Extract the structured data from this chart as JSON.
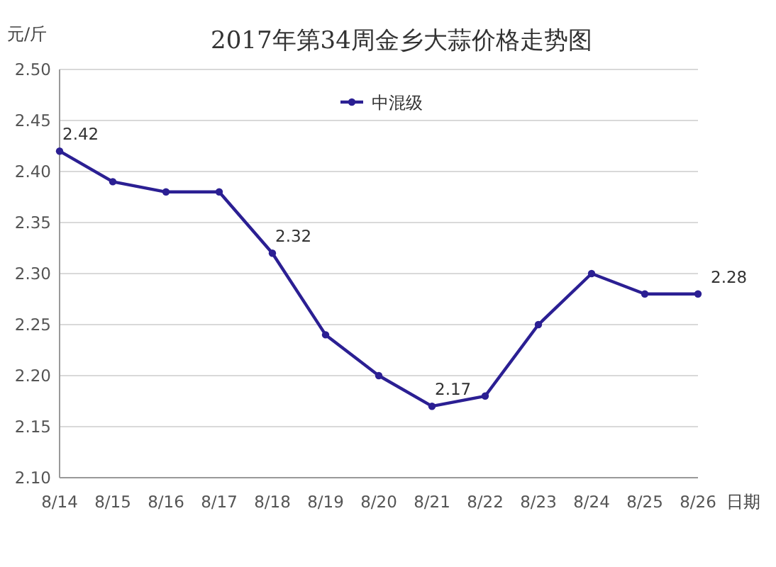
{
  "chart_data": {
    "type": "line",
    "title": "2017年第34周金乡大蒜价格走势图",
    "ylabel": "元/斤",
    "xlabel": "日期",
    "categories": [
      "8/14",
      "8/15",
      "8/16",
      "8/17",
      "8/18",
      "8/19",
      "8/20",
      "8/21",
      "8/22",
      "8/23",
      "8/24",
      "8/25",
      "8/26"
    ],
    "series": [
      {
        "name": "中混级",
        "color": "#2b1f93",
        "values": [
          2.42,
          2.39,
          2.38,
          2.38,
          2.32,
          2.24,
          2.2,
          2.17,
          2.18,
          2.25,
          2.3,
          2.28,
          2.28
        ],
        "value_labels": [
          "2.42",
          null,
          null,
          null,
          "2.32",
          null,
          null,
          "2.17",
          null,
          null,
          null,
          null,
          "2.28"
        ]
      }
    ],
    "ylim": [
      2.1,
      2.5
    ],
    "yticks": [
      {
        "value": 2.1,
        "label": "2.10"
      },
      {
        "value": 2.15,
        "label": "2.15"
      },
      {
        "value": 2.2,
        "label": "2.20"
      },
      {
        "value": 2.25,
        "label": "2.25"
      },
      {
        "value": 2.3,
        "label": "2.30"
      },
      {
        "value": 2.35,
        "label": "2.35"
      },
      {
        "value": 2.4,
        "label": "2.40"
      },
      {
        "value": 2.45,
        "label": "2.45"
      },
      {
        "value": 2.5,
        "label": "2.50"
      }
    ],
    "grid": "y",
    "legend": "top",
    "marker": "circle",
    "line_style": "solid"
  }
}
